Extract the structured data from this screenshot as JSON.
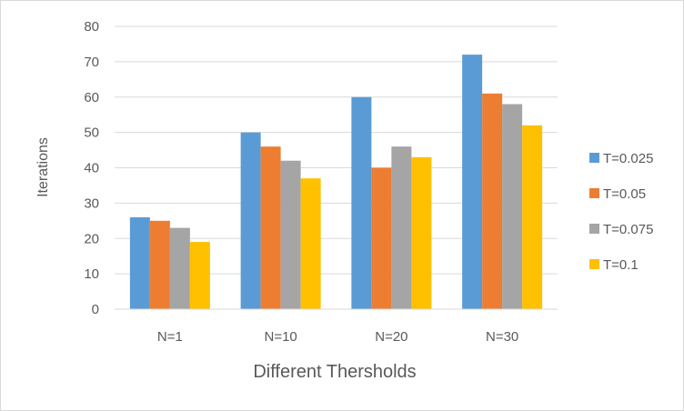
{
  "chart_data": {
    "type": "bar",
    "title": "",
    "xlabel": "Different Thersholds",
    "ylabel": "Iterations",
    "categories": [
      "N=1",
      "N=10",
      "N=20",
      "N=30"
    ],
    "ylim": [
      0,
      80
    ],
    "yticks": [
      0,
      10,
      20,
      30,
      40,
      50,
      60,
      70,
      80
    ],
    "grid": true,
    "legend_position": "right",
    "series": [
      {
        "name": "T=0.025",
        "color": "#5b9bd5",
        "values": [
          26,
          50,
          60,
          72
        ]
      },
      {
        "name": "T=0.05",
        "color": "#ed7d31",
        "values": [
          25,
          46,
          40,
          61
        ]
      },
      {
        "name": "T=0.075",
        "color": "#a5a5a5",
        "values": [
          23,
          42,
          46,
          58
        ]
      },
      {
        "name": "T=0.1",
        "color": "#ffc000",
        "values": [
          19,
          37,
          43,
          52
        ]
      }
    ]
  }
}
